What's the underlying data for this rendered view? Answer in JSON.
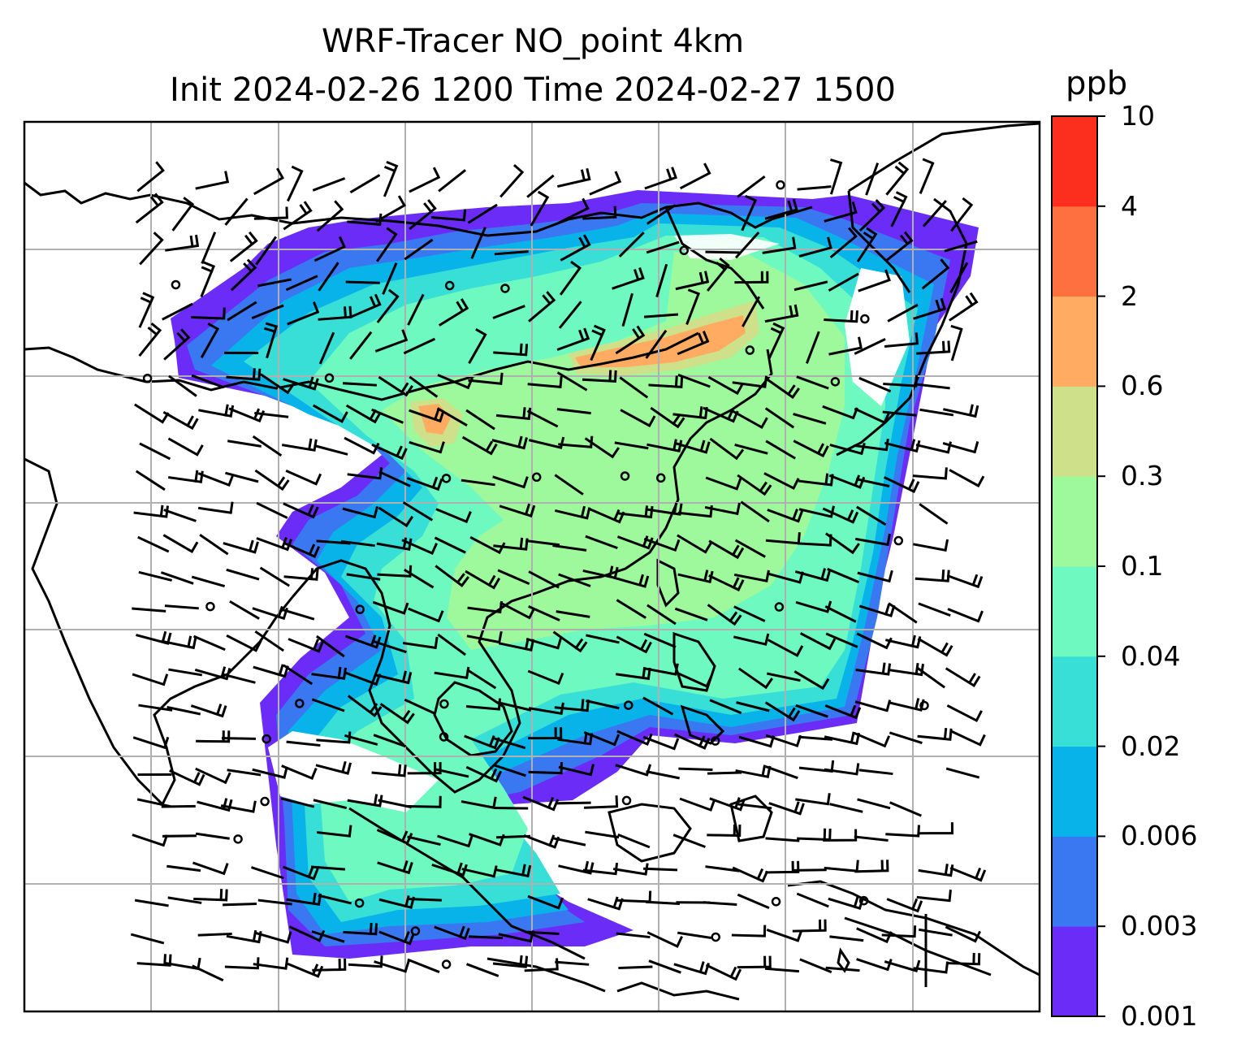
{
  "title": {
    "line1": "WRF-Tracer NO_point 4km",
    "line2": "Init 2024-02-26 1200 Time 2024-02-27 1500"
  },
  "colorbar": {
    "unit": "ppb",
    "levels": [
      "0.001",
      "0.003",
      "0.006",
      "0.02",
      "0.04",
      "0.1",
      "0.3",
      "0.6",
      "2",
      "4",
      "10"
    ],
    "colors": [
      "#6a2cf6",
      "#3a78f2",
      "#08b3ea",
      "#37dfd6",
      "#6ef9c0",
      "#9ef89c",
      "#cfe08a",
      "#ffac62",
      "#ff7040",
      "#fc2f1e"
    ]
  },
  "map": {
    "field_name": "NO tracer concentration",
    "overlays": [
      "wind-barbs",
      "coastlines",
      "country-borders",
      "gridlines"
    ],
    "colors": {
      "coastline": "#000000",
      "gridline": "#b0b0b0",
      "frame": "#000000"
    }
  }
}
